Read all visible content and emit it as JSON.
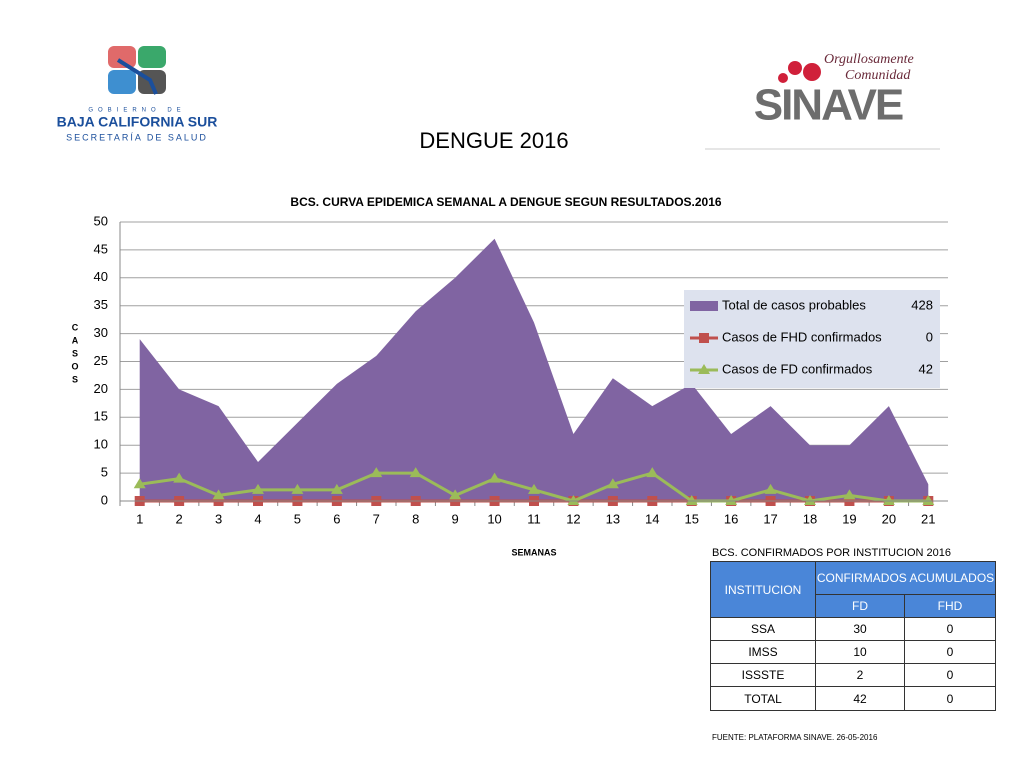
{
  "header": {
    "left_logo": {
      "top_line": "GOBIERNO DE",
      "name": "BAJA CALIFORNIA SUR",
      "department": "SECRETARÍA DE SALUD"
    },
    "right_logo": {
      "tagline_1": "Orgullosamente",
      "tagline_2": "Comunidad",
      "name": "SINAVE"
    }
  },
  "title": "DENGUE 2016",
  "chart_data": {
    "type": "area",
    "title": "BCS. CURVA EPIDEMICA SEMANAL A DENGUE SEGUN RESULTADOS.2016",
    "x_label": "SEMANAS",
    "y_label": "CASOS",
    "categories": [
      1,
      2,
      3,
      4,
      5,
      6,
      7,
      8,
      9,
      10,
      11,
      12,
      13,
      14,
      15,
      16,
      17,
      18,
      19,
      20,
      21
    ],
    "series": [
      {
        "name": "Total de casos probables",
        "total": 428,
        "type": "area",
        "color": "#8064a2",
        "values": [
          29,
          20,
          17,
          7,
          14,
          21,
          26,
          34,
          40,
          47,
          32,
          12,
          22,
          17,
          21,
          12,
          17,
          10,
          10,
          17,
          3
        ]
      },
      {
        "name": "Casos de FHD confirmados",
        "total": 0,
        "type": "line",
        "marker": "square",
        "color": "#c0504d",
        "values": [
          0,
          0,
          0,
          0,
          0,
          0,
          0,
          0,
          0,
          0,
          0,
          0,
          0,
          0,
          0,
          0,
          0,
          0,
          0,
          0,
          0
        ]
      },
      {
        "name": "Casos de FD confirmados",
        "total": 42,
        "type": "line",
        "marker": "triangle",
        "color": "#9bbb59",
        "values": [
          3,
          4,
          1,
          2,
          2,
          2,
          5,
          5,
          1,
          4,
          2,
          0,
          3,
          5,
          0,
          0,
          2,
          0,
          1,
          0,
          0
        ]
      }
    ],
    "ylim": [
      0,
      50
    ],
    "yticks": [
      0,
      5,
      10,
      15,
      20,
      25,
      30,
      35,
      40,
      45,
      50
    ],
    "grid": true
  },
  "table": {
    "title": "BCS. CONFIRMADOS POR INSTITUCION 2016",
    "header": {
      "institution": "INSTITUCION",
      "group": "CONFIRMADOS ACUMULADOS",
      "columns": [
        "FD",
        "FHD"
      ]
    },
    "rows": [
      [
        "SSA",
        30,
        0
      ],
      [
        "IMSS",
        10,
        0
      ],
      [
        "ISSSTE",
        2,
        0
      ],
      [
        "TOTAL",
        42,
        0
      ]
    ]
  },
  "footnote": "FUENTE: PLATAFORMA SINAVE. 26-05-2016"
}
